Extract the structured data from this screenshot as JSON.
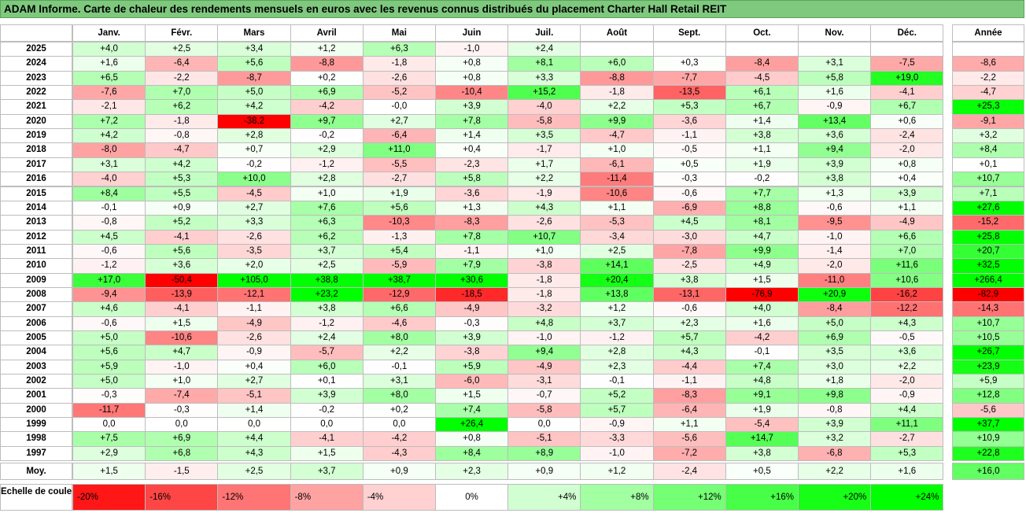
{
  "title": "ADAM Informe. Carte de chaleur des rendements mensuels en euros avec les revenus connus distribués du placement Charter Hall Retail REIT",
  "colors": {
    "negative_max": "#ff0000",
    "neutral": "#ffffff",
    "positive_max": "#00ff00",
    "title_bg": "#7fc97f"
  },
  "chart_data": {
    "type": "heatmap",
    "title": "ADAM Informe. Carte de chaleur des rendements mensuels en euros avec les revenus connus distribués du placement Charter Hall Retail REIT",
    "months": [
      "Janv.",
      "Févr.",
      "Mars",
      "Avril",
      "Mai",
      "Juin",
      "Juil.",
      "Août",
      "Sept.",
      "Oct.",
      "Nov.",
      "Déc."
    ],
    "annual_header": "Année",
    "rows": [
      {
        "year": "2025",
        "values": [
          "+4,0",
          "+2,5",
          "+3,4",
          "+1,2",
          "+6,3",
          "-1,0",
          "+2,4",
          "",
          "",
          "",
          "",
          ""
        ],
        "annual": ""
      },
      {
        "year": "2024",
        "values": [
          "+1,6",
          "-6,4",
          "+5,6",
          "-8,8",
          "-1,8",
          "+0,8",
          "+8,1",
          "+6,0",
          "+0,3",
          "-8,4",
          "+3,1",
          "-7,5"
        ],
        "annual": "-8,6"
      },
      {
        "year": "2023",
        "values": [
          "+6,5",
          "-2,2",
          "-8,7",
          "+0,2",
          "-2,6",
          "+0,8",
          "+3,3",
          "-8,8",
          "-7,7",
          "-4,5",
          "+5,8",
          "+19,0"
        ],
        "annual": "-2,2"
      },
      {
        "year": "2022",
        "values": [
          "-7,6",
          "+7,0",
          "+5,0",
          "+6,9",
          "-5,2",
          "-10,4",
          "+15,2",
          "-1,8",
          "-13,5",
          "+6,1",
          "+1,6",
          "-4,1"
        ],
        "annual": "-4,7"
      },
      {
        "year": "2021",
        "values": [
          "-2,1",
          "+6,2",
          "+4,2",
          "-4,2",
          "-0,0",
          "+3,9",
          "-4,0",
          "+2,2",
          "+5,3",
          "+6,7",
          "-0,9",
          "+6,7"
        ],
        "annual": "+25,3"
      },
      {
        "year": "2020",
        "values": [
          "+7,2",
          "-1,8",
          "-38,2",
          "+9,7",
          "+2,7",
          "+7,8",
          "-5,8",
          "+9,9",
          "-3,6",
          "+1,4",
          "+13,4",
          "+0,6"
        ],
        "annual": "-9,1"
      },
      {
        "year": "2019",
        "values": [
          "+4,2",
          "-0,8",
          "+2,8",
          "-0,2",
          "-6,4",
          "+1,4",
          "+3,5",
          "-4,7",
          "-1,1",
          "+3,8",
          "+3,6",
          "-2,4"
        ],
        "annual": "+3,2"
      },
      {
        "year": "2018",
        "values": [
          "-8,0",
          "-4,7",
          "+0,7",
          "+2,9",
          "+11,0",
          "+0,4",
          "-1,7",
          "+1,0",
          "-0,5",
          "+1,1",
          "+9,4",
          "-2,0"
        ],
        "annual": "+8,4"
      },
      {
        "year": "2017",
        "values": [
          "+3,1",
          "+4,2",
          "-0,2",
          "-1,2",
          "-5,5",
          "-2,3",
          "+1,7",
          "-6,1",
          "+0,5",
          "+1,9",
          "+3,9",
          "+0,8"
        ],
        "annual": "+0,1"
      },
      {
        "year": "2016",
        "values": [
          "-4,0",
          "+5,3",
          "+10,0",
          "+2,8",
          "-2,7",
          "+5,8",
          "+2,2",
          "-11,4",
          "-0,3",
          "-0,2",
          "+3,8",
          "+0,4"
        ],
        "annual": "+10,7"
      },
      {
        "year": "2015",
        "values": [
          "+8,4",
          "+5,5",
          "-4,5",
          "+1,0",
          "+1,9",
          "-3,6",
          "-1,9",
          "-10,6",
          "-0,6",
          "+7,7",
          "+1,3",
          "+3,9"
        ],
        "annual": "+7,1"
      },
      {
        "year": "2014",
        "values": [
          "-0,1",
          "+0,9",
          "+2,7",
          "+7,6",
          "+5,6",
          "+1,3",
          "+4,3",
          "+1,1",
          "-6,9",
          "+8,8",
          "-0,6",
          "+1,1"
        ],
        "annual": "+27,6"
      },
      {
        "year": "2013",
        "values": [
          "-0,8",
          "+5,2",
          "+3,3",
          "+6,3",
          "-10,3",
          "-8,3",
          "-2,6",
          "-5,3",
          "+4,5",
          "+8,1",
          "-9,5",
          "-4,9"
        ],
        "annual": "-15,2"
      },
      {
        "year": "2012",
        "values": [
          "+4,5",
          "-4,1",
          "-2,6",
          "+6,2",
          "-1,3",
          "+7,8",
          "+10,7",
          "-3,4",
          "-3,0",
          "+4,7",
          "-1,0",
          "+6,6"
        ],
        "annual": "+25,8"
      },
      {
        "year": "2011",
        "values": [
          "-0,6",
          "+5,6",
          "-3,5",
          "+3,7",
          "+5,4",
          "-1,1",
          "+1,0",
          "+2,5",
          "-7,8",
          "+9,9",
          "-1,4",
          "+7,0"
        ],
        "annual": "+20,7"
      },
      {
        "year": "2010",
        "values": [
          "-1,2",
          "+3,6",
          "+2,0",
          "+2,5",
          "-5,9",
          "+7,9",
          "-3,8",
          "+14,1",
          "-2,5",
          "+4,9",
          "-2,0",
          "+11,6"
        ],
        "annual": "+32,5"
      },
      {
        "year": "2009",
        "values": [
          "+17,0",
          "-50,4",
          "+105,0",
          "+38,8",
          "+38,7",
          "+30,6",
          "-1,8",
          "+20,4",
          "+3,8",
          "+1,5",
          "-11,0",
          "+10,6"
        ],
        "annual": "+266,4"
      },
      {
        "year": "2008",
        "values": [
          "-9,4",
          "-13,9",
          "-12,1",
          "+23,2",
          "-12,9",
          "-18,5",
          "-1,8",
          "+13,8",
          "-13,1",
          "-76,9",
          "+20,9",
          "-16,2"
        ],
        "annual": "-82,9"
      },
      {
        "year": "2007",
        "values": [
          "+4,6",
          "-4,1",
          "-1,1",
          "+3,8",
          "+6,6",
          "-4,9",
          "-3,2",
          "+1,2",
          "-0,6",
          "+4,0",
          "-8,4",
          "-12,2"
        ],
        "annual": "-14,3"
      },
      {
        "year": "2006",
        "values": [
          "-0,6",
          "+1,5",
          "-4,9",
          "-1,2",
          "-4,6",
          "-0,3",
          "+4,8",
          "+3,7",
          "+2,3",
          "+1,6",
          "+5,0",
          "+4,3"
        ],
        "annual": "+10,7"
      },
      {
        "year": "2005",
        "values": [
          "+5,0",
          "-10,6",
          "-2,6",
          "+2,4",
          "+8,0",
          "+3,9",
          "-1,0",
          "-1,2",
          "+5,7",
          "-4,2",
          "+6,9",
          "-0,5"
        ],
        "annual": "+10,5"
      },
      {
        "year": "2004",
        "values": [
          "+5,6",
          "+4,7",
          "-0,9",
          "-5,7",
          "+2,2",
          "-3,8",
          "+9,4",
          "+2,8",
          "+4,3",
          "-0,1",
          "+3,5",
          "+3,6"
        ],
        "annual": "+26,7"
      },
      {
        "year": "2003",
        "values": [
          "+5,9",
          "-1,0",
          "+0,4",
          "+6,0",
          "-0,1",
          "+5,9",
          "-4,9",
          "+2,3",
          "-4,4",
          "+7,4",
          "+3,0",
          "+2,2"
        ],
        "annual": "+23,9"
      },
      {
        "year": "2002",
        "values": [
          "+5,0",
          "+1,0",
          "+2,7",
          "+0,1",
          "+3,1",
          "-6,0",
          "-3,1",
          "-0,1",
          "-1,1",
          "+4,8",
          "+1,8",
          "-2,0"
        ],
        "annual": "+5,9"
      },
      {
        "year": "2001",
        "values": [
          "-0,3",
          "-7,4",
          "-5,1",
          "+3,9",
          "+8,0",
          "+1,5",
          "-0,7",
          "+5,2",
          "-8,3",
          "+9,1",
          "+9,8",
          "-0,9"
        ],
        "annual": "+12,8"
      },
      {
        "year": "2000",
        "values": [
          "-11,7",
          "-0,3",
          "+1,4",
          "-0,2",
          "+0,2",
          "+7,4",
          "-5,8",
          "+5,7",
          "-6,4",
          "+1,9",
          "-0,8",
          "+4,4"
        ],
        "annual": "-5,6"
      },
      {
        "year": "1999",
        "values": [
          "0,0",
          "0,0",
          "0,0",
          "0,0",
          "0,0",
          "+26,4",
          "0,0",
          "-0,9",
          "+1,1",
          "-5,4",
          "+3,9",
          "+11,1"
        ],
        "annual": "+37,7"
      },
      {
        "year": "1998",
        "values": [
          "+7,5",
          "+6,9",
          "+4,4",
          "-4,1",
          "-4,2",
          "+0,8",
          "-5,1",
          "-3,3",
          "-5,6",
          "+14,7",
          "+3,2",
          "-2,7"
        ],
        "annual": "+10,9"
      },
      {
        "year": "1997",
        "values": [
          "+2,9",
          "+6,8",
          "+4,3",
          "+1,5",
          "-4,3",
          "+8,4",
          "+8,9",
          "-1,0",
          "-7,2",
          "+3,8",
          "-6,8",
          "+5,3"
        ],
        "annual": "+22,8"
      }
    ],
    "average": {
      "label": "Moy.",
      "values": [
        "+1,5",
        "-1,5",
        "+2,5",
        "+3,7",
        "+0,9",
        "+2,3",
        "+0,9",
        "+1,2",
        "-2,4",
        "+0,5",
        "+2,2",
        "+1,6"
      ],
      "annual": "+16,0"
    },
    "color_scale": {
      "label": "Echelle de couleur",
      "stops": [
        "-20%",
        "-16%",
        "-12%",
        "-8%",
        "-4%",
        "0%",
        "+4%",
        "+8%",
        "+12%",
        "+16%",
        "+20%",
        "+24%"
      ]
    }
  }
}
